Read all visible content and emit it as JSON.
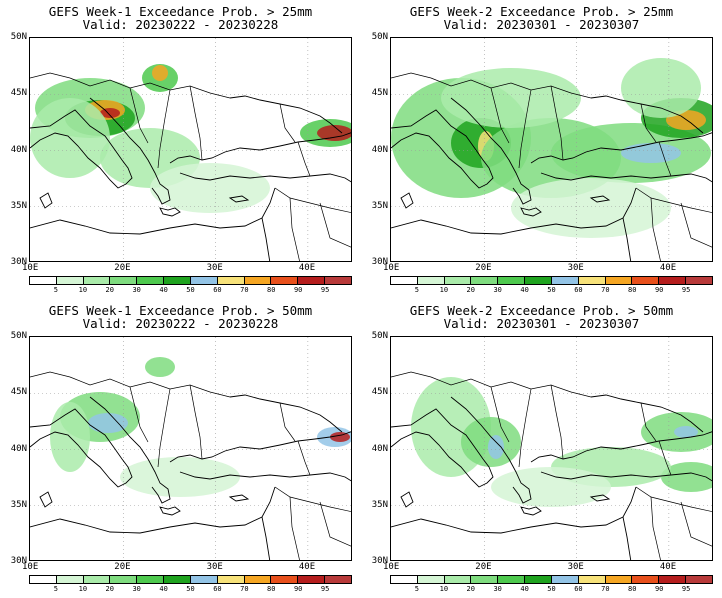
{
  "panels": [
    {
      "title": "GEFS Week-1 Exceedance Prob. > 25mm",
      "valid": "Valid: 20230222 - 20230228"
    },
    {
      "title": "GEFS Week-2 Exceedance Prob. > 25mm",
      "valid": "Valid: 20230301 - 20230307"
    },
    {
      "title": "GEFS Week-1 Exceedance Prob. > 50mm",
      "valid": "Valid: 20230222 - 20230228"
    },
    {
      "title": "GEFS Week-2 Exceedance Prob. > 50mm",
      "valid": "Valid: 20230301 - 20230307"
    }
  ],
  "axes": {
    "lat_labels": [
      "50N",
      "45N",
      "40N",
      "35N",
      "30N"
    ],
    "lon_labels": [
      "10E",
      "20E",
      "30E",
      "40E"
    ]
  },
  "colorbar": {
    "labels": [
      "5",
      "10",
      "20",
      "30",
      "40",
      "50",
      "60",
      "70",
      "80",
      "90",
      "95"
    ],
    "colors": [
      "#ffffff",
      "#d5f5d5",
      "#aaebaa",
      "#7fdc7f",
      "#4ec94e",
      "#1fa31f",
      "#93c4e6",
      "#f7e27a",
      "#f5a623",
      "#e8501c",
      "#b51d1d",
      "#b83a3a"
    ]
  }
}
